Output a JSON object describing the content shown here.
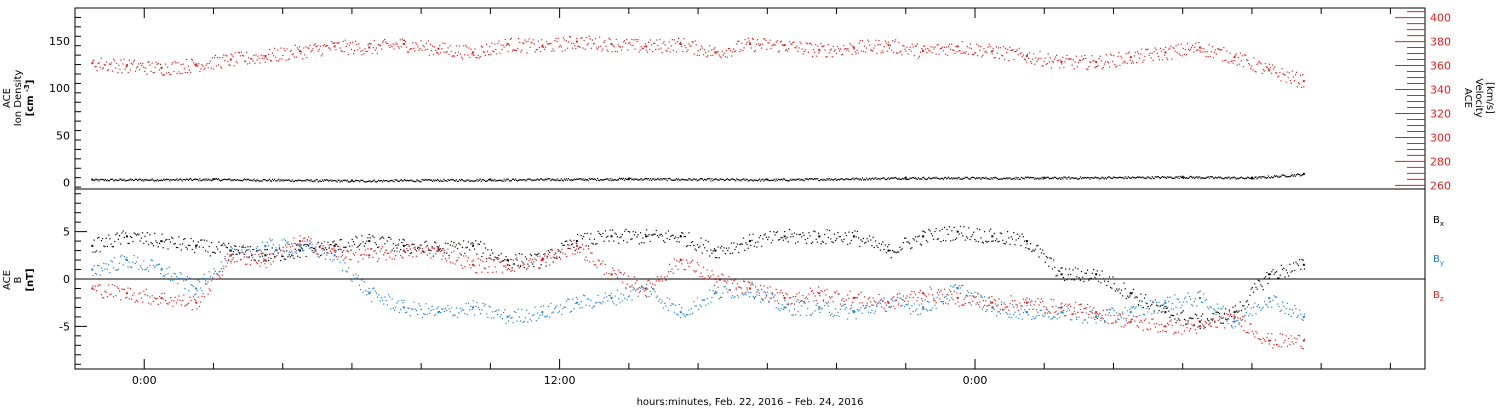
{
  "chart_data": [
    {
      "type": "scatter",
      "panel": "top",
      "left_ylabel_lines": [
        "ACE",
        "Ion Density",
        "[cm^-3]"
      ],
      "right_ylabel_lines": [
        "ACE",
        "Velocity",
        "[km/s]"
      ],
      "left_ylim": [
        -7,
        185
      ],
      "right_ylim": [
        257,
        408
      ],
      "left_ticks": [
        0,
        50,
        100,
        150
      ],
      "right_ticks": [
        260,
        280,
        300,
        320,
        340,
        360,
        380,
        400
      ],
      "series": [
        {
          "color": "#000000",
          "axis": "left",
          "x": [
            -1.5,
            2,
            6,
            10,
            14,
            18,
            22,
            26,
            30,
            32,
            33.5
          ],
          "y": [
            3,
            3.5,
            2,
            3,
            4,
            3,
            5,
            5,
            6,
            5,
            9
          ]
        },
        {
          "color": "#e02020",
          "axis": "right",
          "x": [
            -1.5,
            -0.5,
            0.5,
            1.5,
            2.5,
            3.5,
            4.5,
            5.5,
            6.5,
            7.5,
            8.5,
            9.5,
            10.5,
            11.5,
            12.5,
            13.5,
            14.5,
            15.5,
            16.5,
            17.5,
            18.5,
            19.5,
            20.5,
            21.5,
            22.5,
            23.5,
            24.5,
            25.5,
            26.5,
            27.5,
            28.5,
            29.5,
            30.5,
            31.5,
            32.5,
            33.5
          ],
          "y": [
            362,
            360,
            358,
            361,
            365,
            368,
            372,
            376,
            375,
            378,
            374,
            371,
            378,
            376,
            380,
            378,
            376,
            378,
            371,
            378,
            377,
            373,
            375,
            377,
            372,
            376,
            372,
            368,
            363,
            363,
            367,
            371,
            375,
            367,
            356,
            347
          ]
        }
      ]
    },
    {
      "type": "scatter",
      "panel": "bottom",
      "ylabel_lines": [
        "ACE",
        "B",
        "[nT]"
      ],
      "ylim": [
        -9.5,
        9.5
      ],
      "yticks": [
        -5,
        0,
        5
      ],
      "zero_line": true,
      "series": [
        {
          "name": "Bx",
          "color": "#000000",
          "x": [
            -1.5,
            -0.5,
            0.5,
            1.5,
            2.5,
            3.5,
            4.5,
            5.5,
            6.5,
            7.5,
            8.5,
            9.5,
            10.5,
            11.5,
            12.5,
            13.5,
            14.5,
            15.5,
            16.5,
            17.5,
            18.5,
            19.5,
            20.5,
            21.5,
            22.5,
            23.5,
            24.5,
            25.5,
            26.5,
            27.5,
            28.5,
            29.5,
            30.5,
            31.5,
            32.5,
            33.5
          ],
          "y": [
            3.5,
            4.5,
            4,
            3.5,
            3,
            2.5,
            3,
            3.5,
            4,
            3.5,
            3.2,
            3.5,
            2,
            2,
            4,
            4.5,
            4.5,
            4.5,
            3,
            4,
            4.5,
            4.5,
            4.5,
            3,
            4.5,
            5,
            4.5,
            4,
            0.5,
            0.5,
            -1.5,
            -3.5,
            -4.5,
            -3.5,
            0.5,
            1.5
          ]
        },
        {
          "name": "By",
          "color": "#1f7fd0",
          "x": [
            -1.5,
            -0.5,
            0.5,
            1.5,
            2.5,
            3.5,
            4.5,
            5.5,
            6.5,
            7.5,
            8.5,
            9.5,
            10.5,
            11.5,
            12.5,
            13.5,
            14.5,
            15.5,
            16.5,
            17.5,
            18.5,
            19.5,
            20.5,
            21.5,
            22.5,
            23.5,
            24.5,
            25.5,
            26.5,
            27.5,
            28.5,
            29.5,
            30.5,
            31.5,
            32.5,
            33.5
          ],
          "y": [
            1,
            2,
            1,
            -1,
            2.5,
            3.5,
            3.5,
            2.5,
            -1.5,
            -3,
            -3.5,
            -3,
            -4,
            -3.5,
            -2.5,
            -2,
            -1,
            -3.5,
            -1.5,
            -1,
            -3,
            -3,
            -3.5,
            -2.5,
            -3,
            -1,
            -3,
            -3.5,
            -3.5,
            -4,
            -3.5,
            -2.5,
            -2,
            -4.5,
            -2,
            -4
          ]
        },
        {
          "name": "Bz",
          "color": "#e02020",
          "x": [
            -1.5,
            -0.5,
            0.5,
            1.5,
            2.5,
            3.5,
            4.5,
            5.5,
            6.5,
            7.5,
            8.5,
            9.5,
            10.5,
            11.5,
            12.5,
            13.5,
            14.5,
            15.5,
            16.5,
            17.5,
            18.5,
            19.5,
            20.5,
            21.5,
            22.5,
            23.5,
            24.5,
            25.5,
            26.5,
            27.5,
            28.5,
            29.5,
            30.5,
            31.5,
            32.5,
            33.5
          ],
          "y": [
            -1,
            -1.5,
            -2,
            -2.5,
            2.5,
            2,
            4,
            3,
            2.5,
            3,
            3,
            1.5,
            1.5,
            2,
            3.5,
            0.5,
            -1,
            2,
            0,
            -1,
            -2,
            -1.5,
            -2,
            -2.5,
            -1.5,
            -2,
            -2.5,
            -2.5,
            -3,
            -3.5,
            -4.5,
            -5,
            -5,
            -4,
            -6.5,
            -6.5
          ]
        }
      ]
    }
  ],
  "x_axis": {
    "xlim": [
      -2,
      37
    ],
    "major_ticks": [
      0,
      12,
      24
    ],
    "tick_labels": [
      "0:00",
      "12:00",
      "0:00"
    ],
    "minor_step": 2,
    "label": "hours:minutes, Feb. 22, 2016 – Feb. 24, 2016"
  },
  "legend": {
    "items": [
      {
        "base": "B",
        "sub": "x",
        "color": "#000000"
      },
      {
        "base": "B",
        "sub": "y",
        "color": "#1f7fd0"
      },
      {
        "base": "B",
        "sub": "z",
        "color": "#e02020"
      }
    ]
  }
}
